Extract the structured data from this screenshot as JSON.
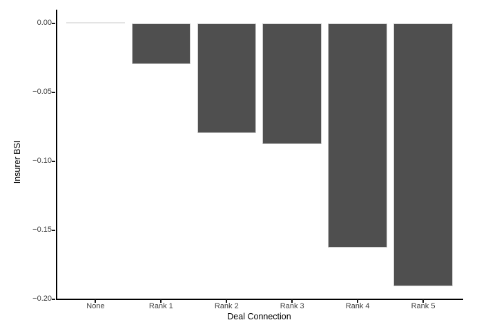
{
  "chart_data": {
    "type": "bar",
    "title": "",
    "xlabel": "Deal Connection",
    "ylabel": "Insurer BSI",
    "categories": [
      "None",
      "Rank 1",
      "Rank 2",
      "Rank 3",
      "Rank 4",
      "Rank 5"
    ],
    "values": [
      0.0,
      -0.03,
      -0.08,
      -0.088,
      -0.163,
      -0.191
    ],
    "ylim": [
      -0.2,
      0.0
    ],
    "yticks": [
      0.0,
      -0.05,
      -0.1,
      -0.15,
      -0.2
    ],
    "ytick_labels": [
      "0.00",
      "−0.05",
      "−0.10",
      "−0.15",
      "−0.20"
    ],
    "grid": false,
    "legend": "none",
    "bar_color": "#4f4f4f",
    "zero_bar_color": "#e4e4e4",
    "axis_color": "#000000",
    "tick_label_color": "#3d3d3d",
    "background_color": "#ffffff"
  }
}
